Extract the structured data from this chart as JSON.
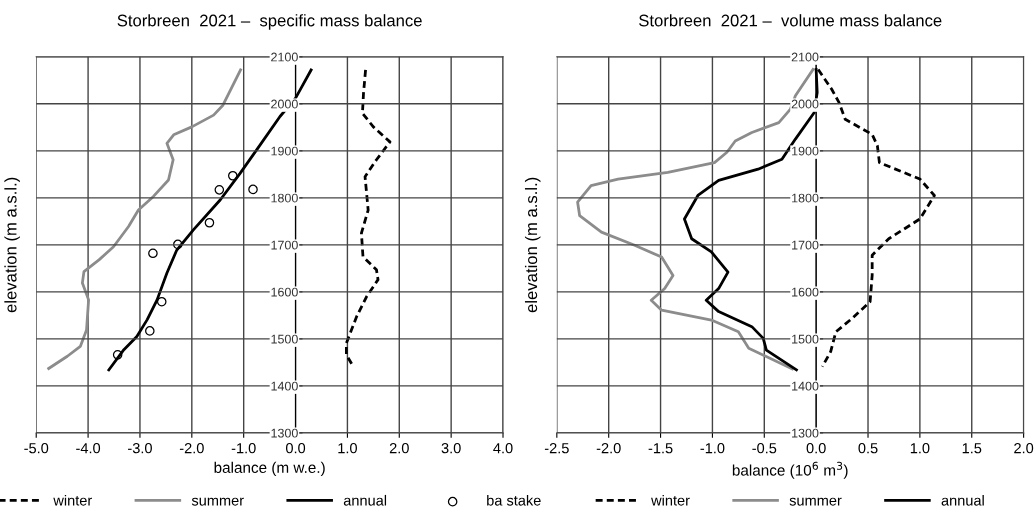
{
  "chart_data": [
    {
      "type": "line",
      "title": "Storbreen  2021 –  specific mass balance",
      "xlabel": "balance (m w.e.)",
      "ylabel": "elevation (m a.s.l.)",
      "xlim": [
        -5,
        4
      ],
      "xticks": [
        {
          "value": -5,
          "label": "-5.0"
        },
        {
          "value": -4,
          "label": "-4.0"
        },
        {
          "value": -3,
          "label": "-3.0"
        },
        {
          "value": -2,
          "label": "-2.0"
        },
        {
          "value": -1,
          "label": "-1.0"
        },
        {
          "value": 0,
          "label": "0.0"
        },
        {
          "value": 1,
          "label": "1.0"
        },
        {
          "value": 2,
          "label": "2.0"
        },
        {
          "value": 3,
          "label": "3.0"
        },
        {
          "value": 4,
          "label": "4.0"
        }
      ],
      "ylim": [
        1300,
        2100
      ],
      "yticks": [
        1300,
        1400,
        1500,
        1600,
        1700,
        1800,
        1900,
        2000,
        2100
      ],
      "grid": true,
      "legend": "bottom",
      "series": [
        {
          "name": "winter",
          "color": "#000000",
          "line_style": "dashed",
          "x": [
            1.35,
            1.31,
            1.29,
            1.5,
            1.82,
            1.56,
            1.34,
            1.4,
            1.27,
            1.3,
            1.56,
            1.59,
            1.37,
            1.18,
            0.98,
            0.98,
            1.11
          ],
          "values": [
            2072,
            2022,
            1980,
            1951,
            1919,
            1881,
            1845,
            1774,
            1725,
            1675,
            1647,
            1626,
            1590,
            1548,
            1491,
            1466,
            1442
          ]
        },
        {
          "name": "summer",
          "color": "#8c8c8c",
          "line_style": "solid",
          "x": [
            -1.06,
            -1.4,
            -1.58,
            -2.0,
            -2.35,
            -2.48,
            -2.36,
            -2.45,
            -2.74,
            -3.03,
            -3.22,
            -3.51,
            -3.79,
            -4.08,
            -4.11,
            -3.99,
            -4.03,
            -4.15,
            -4.4,
            -4.76
          ],
          "values": [
            2072,
            1997,
            1976,
            1951,
            1934,
            1916,
            1881,
            1838,
            1803,
            1774,
            1739,
            1696,
            1668,
            1643,
            1619,
            1583,
            1519,
            1484,
            1463,
            1437
          ]
        },
        {
          "name": "annual",
          "color": "#000000",
          "line_style": "solid",
          "x": [
            0.3,
            0.12,
            0.0,
            -0.3,
            -0.75,
            -1.07,
            -1.45,
            -1.97,
            -2.29,
            -2.48,
            -2.67,
            -2.86,
            -3.06,
            -3.31,
            -3.6
          ],
          "values": [
            2072,
            2036,
            2012,
            1973,
            1902,
            1852,
            1796,
            1732,
            1689,
            1640,
            1583,
            1541,
            1505,
            1477,
            1434
          ]
        },
        {
          "name": "ba stake",
          "type": "scatter",
          "marker": "circle",
          "color": "#000000",
          "x": [
            -1.21,
            -1.47,
            -0.82,
            -1.66,
            -2.27,
            -2.75,
            -2.58,
            -2.81,
            -3.43
          ],
          "values": [
            1847,
            1817,
            1818,
            1747,
            1701,
            1682,
            1579,
            1517,
            1466
          ]
        }
      ]
    },
    {
      "type": "line",
      "title": "Storbreen  2021 –  volume mass balance",
      "xlabel": "balance (10$^{6}$ m$^{3}$)",
      "ylabel": "elevation (m a.s.l.)",
      "xlim": [
        -2.5,
        2
      ],
      "xticks": [
        {
          "value": -2.5,
          "label": "-2.5"
        },
        {
          "value": -2,
          "label": "-2.0"
        },
        {
          "value": -1.5,
          "label": "-1.5"
        },
        {
          "value": -1,
          "label": "-1.0"
        },
        {
          "value": -0.5,
          "label": "-0.5"
        },
        {
          "value": 0,
          "label": "0.0"
        },
        {
          "value": 0.5,
          "label": "0.5"
        },
        {
          "value": 1,
          "label": "1.0"
        },
        {
          "value": 1.5,
          "label": "1.5"
        },
        {
          "value": 2,
          "label": "2.0"
        }
      ],
      "ylim": [
        1300,
        2100
      ],
      "yticks": [
        1300,
        1400,
        1500,
        1600,
        1700,
        1800,
        1900,
        2000,
        2100
      ],
      "grid": true,
      "legend": "bottom",
      "series": [
        {
          "name": "winter",
          "color": "#000000",
          "line_style": "dashed",
          "x": [
            0.02,
            0.15,
            0.22,
            0.28,
            0.54,
            0.59,
            0.61,
            1.0,
            1.14,
            1.0,
            0.7,
            0.54,
            0.54,
            0.52,
            0.35,
            0.19,
            0.14,
            0.06
          ],
          "values": [
            2073,
            2031,
            2003,
            1967,
            1935,
            1911,
            1875,
            1840,
            1805,
            1755,
            1713,
            1678,
            1635,
            1579,
            1544,
            1515,
            1473,
            1441
          ]
        },
        {
          "name": "summer",
          "color": "#8c8c8c",
          "line_style": "solid",
          "x": [
            -0.03,
            -0.2,
            -0.25,
            -0.36,
            -0.62,
            -0.78,
            -0.86,
            -0.98,
            -1.43,
            -1.91,
            -2.17,
            -2.3,
            -2.28,
            -2.07,
            -1.75,
            -1.49,
            -1.38,
            -1.46,
            -1.59,
            -1.49,
            -1.01,
            -0.75,
            -0.65,
            -0.23
          ],
          "values": [
            2073,
            2017,
            1988,
            1960,
            1939,
            1921,
            1897,
            1875,
            1854,
            1840,
            1826,
            1791,
            1762,
            1727,
            1699,
            1674,
            1635,
            1607,
            1582,
            1561,
            1540,
            1515,
            1480,
            1436
          ]
        },
        {
          "name": "annual",
          "color": "#000000",
          "line_style": "solid",
          "x": [
            0.0,
            0.01,
            -0.02,
            -0.2,
            -0.33,
            -0.56,
            -0.94,
            -1.14,
            -1.27,
            -1.2,
            -1.01,
            -0.85,
            -0.94,
            -1.06,
            -0.94,
            -0.62,
            -0.51,
            -0.48,
            -0.19
          ],
          "values": [
            2073,
            2024,
            1981,
            1925,
            1882,
            1861,
            1837,
            1805,
            1755,
            1713,
            1685,
            1642,
            1607,
            1582,
            1558,
            1526,
            1501,
            1476,
            1434
          ]
        }
      ]
    }
  ]
}
